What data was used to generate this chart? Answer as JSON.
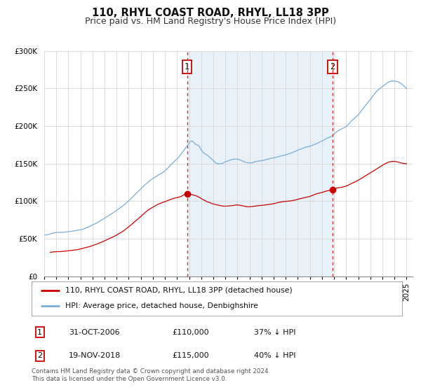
{
  "title": "110, RHYL COAST ROAD, RHYL, LL18 3PP",
  "subtitle": "Price paid vs. HM Land Registry's House Price Index (HPI)",
  "red_label": "110, RHYL COAST ROAD, RHYL, LL18 3PP (detached house)",
  "blue_label": "HPI: Average price, detached house, Denbighshire",
  "event1_label": "1",
  "event2_label": "2",
  "event1_date": "31-OCT-2006",
  "event1_price": "£110,000",
  "event1_pct": "37% ↓ HPI",
  "event2_date": "19-NOV-2018",
  "event2_price": "£115,000",
  "event2_pct": "40% ↓ HPI",
  "event1_x": 2006.83,
  "event2_x": 2018.88,
  "footer": "Contains HM Land Registry data © Crown copyright and database right 2024.\nThis data is licensed under the Open Government Licence v3.0.",
  "ylim": [
    0,
    300000
  ],
  "xlim": [
    1995,
    2025.5
  ],
  "bg_color": "#e8f0f8",
  "plot_bg": "#ffffff",
  "red_color": "#cc0000",
  "blue_color": "#7aadd4",
  "event_line_color": "#cc3333",
  "title_fontsize": 10.5,
  "subtitle_fontsize": 9,
  "tick_fontsize": 7.5
}
